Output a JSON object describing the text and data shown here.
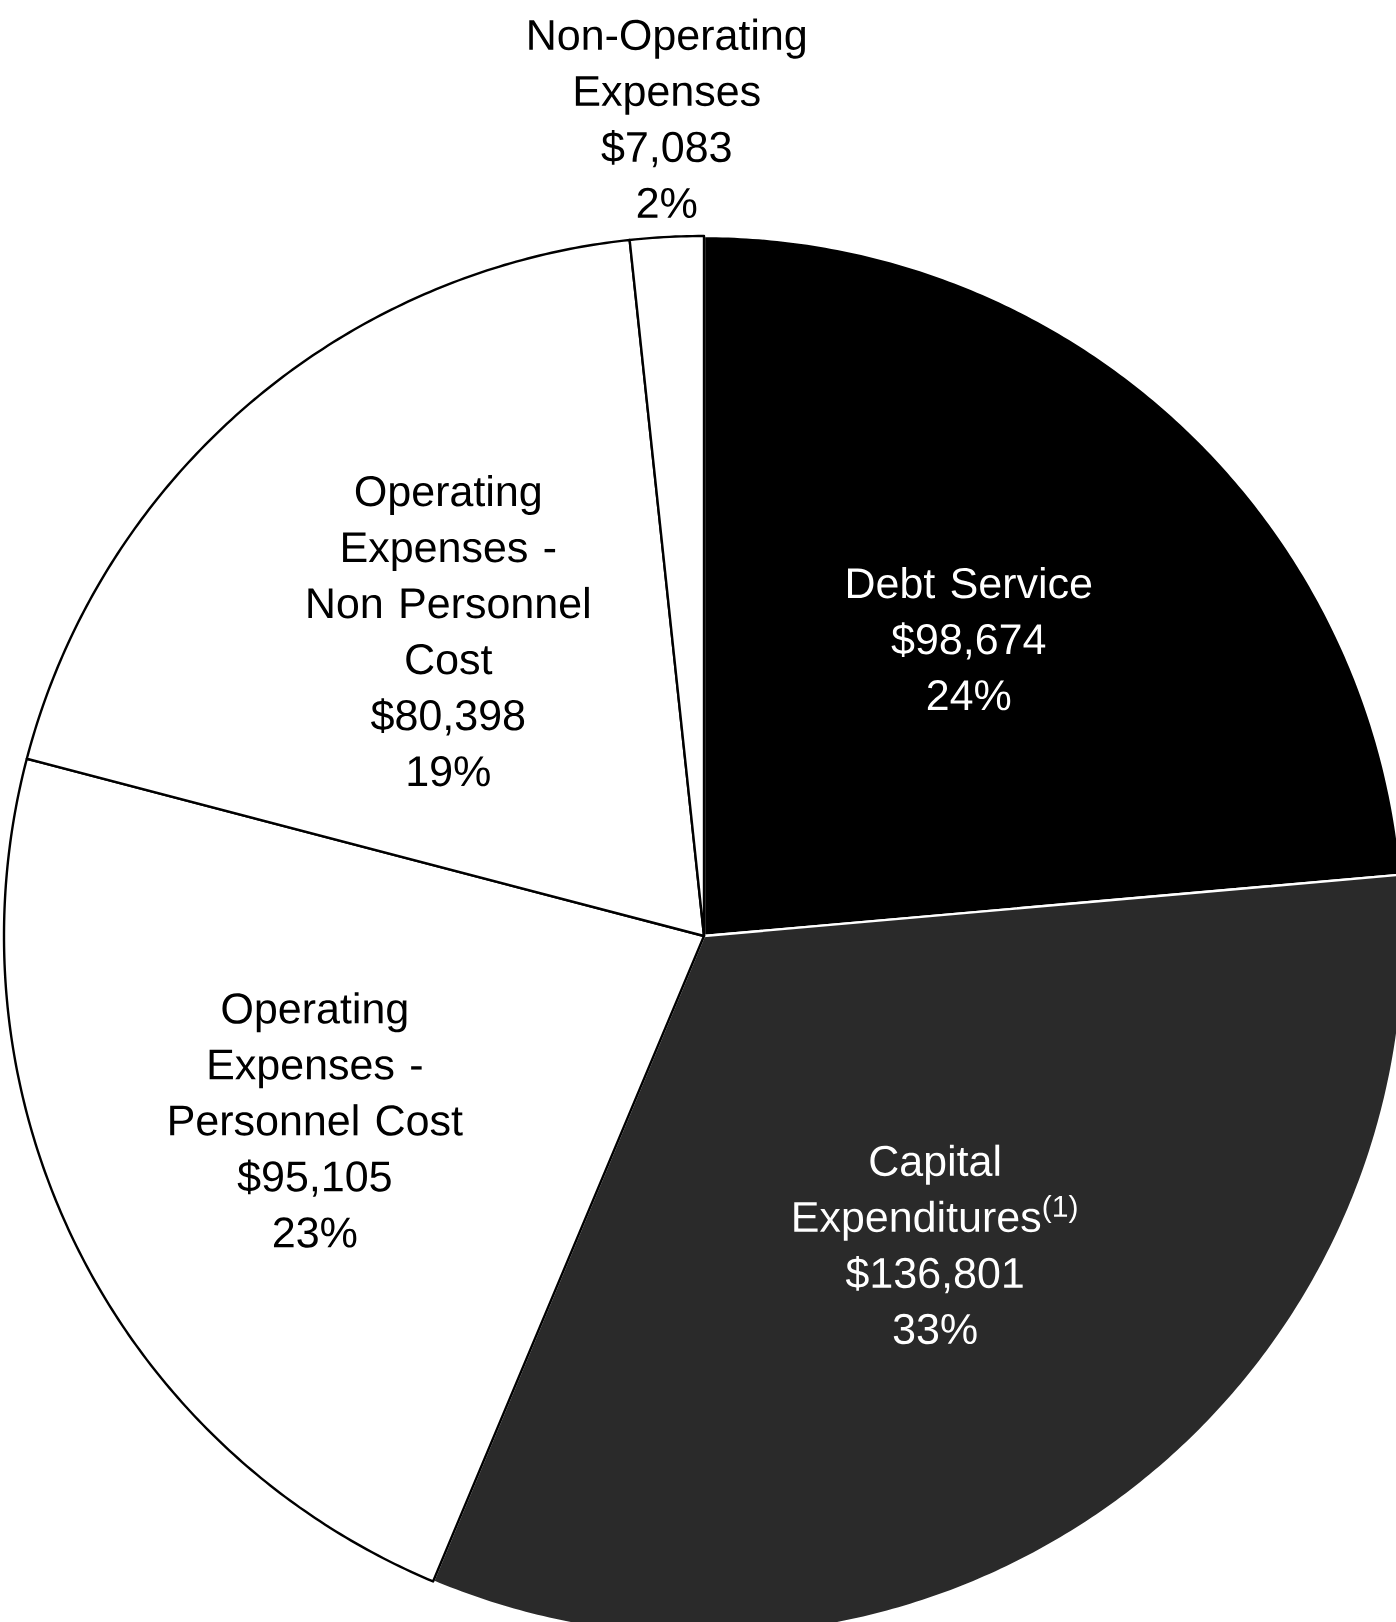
{
  "chart_data": {
    "type": "pie",
    "categories": [
      "Debt Service",
      "Capital Expenditures$^{(1)}$",
      "Operating Expenses - Personnel Cost",
      "Operating Expenses - Non Personnel Cost",
      "Non-Operating Expenses"
    ],
    "values": [
      98674,
      136801,
      95105,
      80398,
      7083
    ],
    "colors": [
      "#000000",
      "#2a2a2a",
      "#ffffff",
      "#ffffff",
      "#ffffff"
    ],
    "value_labels": [
      "$98,674 24%",
      "$136,801 33%",
      "$95,105 23%",
      "$80,398 19%",
      "$7,083 2%"
    ]
  }
}
